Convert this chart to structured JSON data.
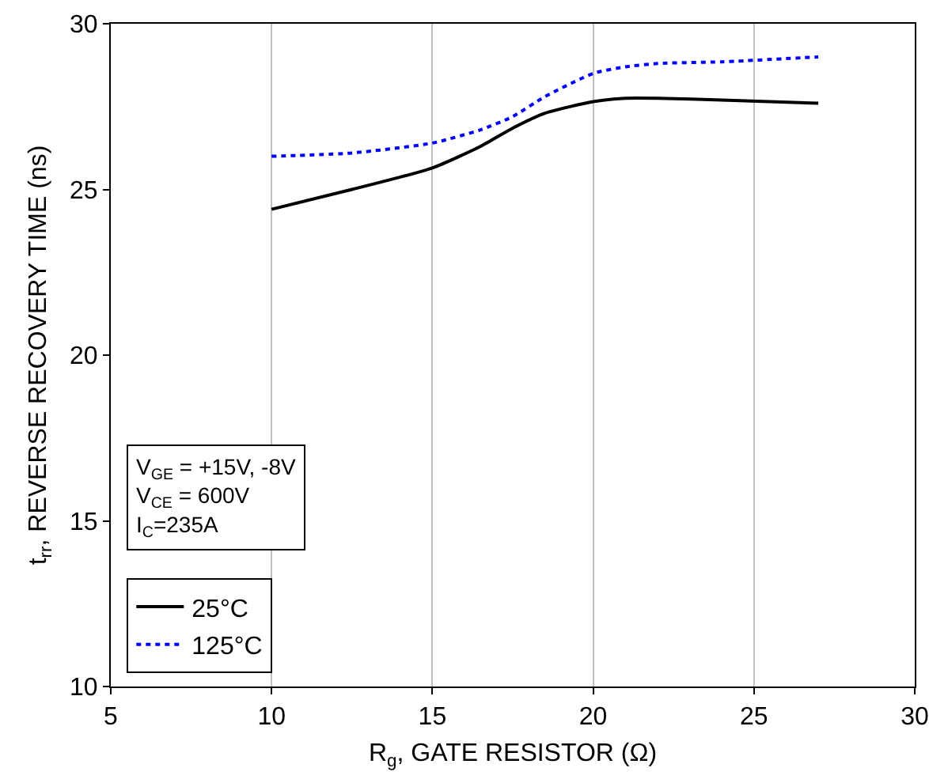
{
  "chart_data": {
    "type": "line",
    "xlabel": "R$_{g}$, GATE RESISTOR (Ω)",
    "ylabel": "t$_{rr}$, REVERSE RECOVERY TIME (ns)",
    "x": [
      10,
      12.5,
      15,
      16.5,
      17.5,
      18.5,
      20,
      21,
      22,
      24,
      27
    ],
    "series": [
      {
        "name": "25°C",
        "color": "#000000",
        "line_style": "solid",
        "values": [
          24.4,
          25.0,
          25.65,
          26.3,
          26.85,
          27.3,
          27.65,
          27.75,
          27.75,
          27.7,
          27.6
        ]
      },
      {
        "name": "125°C",
        "color": "#0000ff",
        "line_style": "dotted",
        "values": [
          26.0,
          26.1,
          26.4,
          26.8,
          27.2,
          27.8,
          28.5,
          28.7,
          28.8,
          28.85,
          29.0
        ]
      }
    ],
    "xlim": [
      5,
      30
    ],
    "xticks": [
      5,
      10,
      15,
      20,
      25,
      30
    ],
    "ylim": [
      10,
      30
    ],
    "yticks": [
      10,
      15,
      20,
      25,
      30
    ],
    "grid": "x",
    "legend": "bottom left",
    "marker": "none",
    "annotations": [
      "V$_{GE}$ = +15V, -8V\nV$_{CE}$ = 600V\nI$_{C}$=235A"
    ]
  }
}
